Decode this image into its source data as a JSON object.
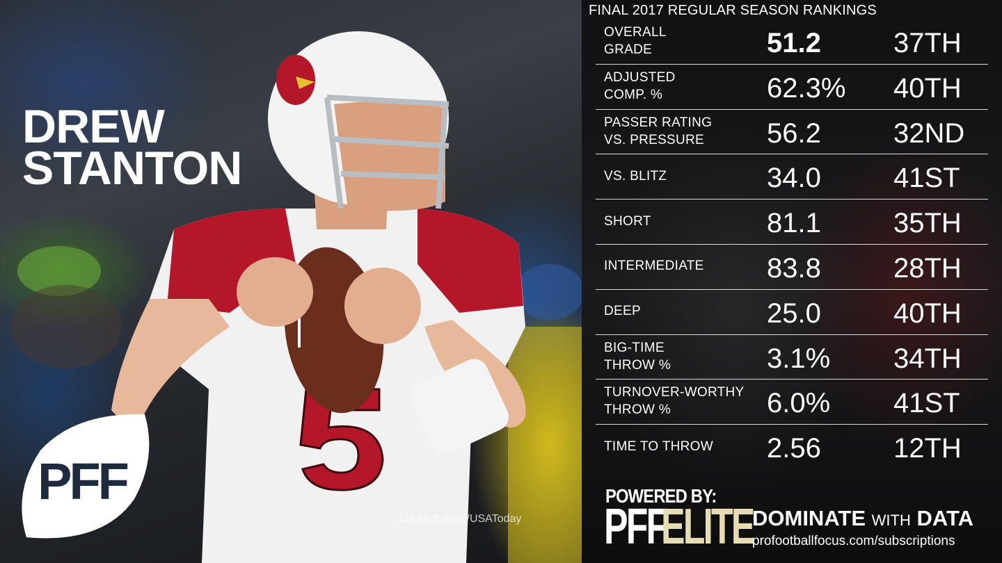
{
  "player": {
    "first_name": "DREW",
    "last_name": "STANTON",
    "jersey_number": "5"
  },
  "photo_credit": "Joe Nicholson/USAToday",
  "logo_text": "PFF",
  "panel_title": "FINAL 2017 REGULAR SEASON RANKINGS",
  "stats": [
    {
      "label": "OVERALL\nGRADE",
      "value": "51.2",
      "rank": "37TH"
    },
    {
      "label": "ADJUSTED\nCOMP. %",
      "value": "62.3%",
      "rank": "40TH"
    },
    {
      "label": "PASSER RATING\nVS. PRESSURE",
      "value": "56.2",
      "rank": "32ND"
    },
    {
      "label": "VS. BLITZ",
      "value": "34.0",
      "rank": "41ST"
    },
    {
      "label": "SHORT",
      "value": "81.1",
      "rank": "35TH"
    },
    {
      "label": "INTERMEDIATE",
      "value": "83.8",
      "rank": "28TH"
    },
    {
      "label": "DEEP",
      "value": "25.0",
      "rank": "40TH"
    },
    {
      "label": "BIG-TIME\nTHROW %",
      "value": "3.1%",
      "rank": "34TH"
    },
    {
      "label": "TURNOVER-WORTHY\nTHROW %",
      "value": "6.0%",
      "rank": "41ST"
    },
    {
      "label": "TIME TO THROW",
      "value": "2.56",
      "rank": "12TH"
    }
  ],
  "footer": {
    "powered_by": "POWERED BY:",
    "brand_pff": "PFF",
    "brand_elite": "ELITE",
    "tagline_dominate": "DOMINATE",
    "tagline_with": "WITH",
    "tagline_data": "DATA",
    "url": "profootballfocus.com/subscriptions"
  },
  "colors": {
    "cardinal_red": "#b5172a",
    "elite_gold": "#e6dcb4",
    "panel_bg": "#121214"
  }
}
